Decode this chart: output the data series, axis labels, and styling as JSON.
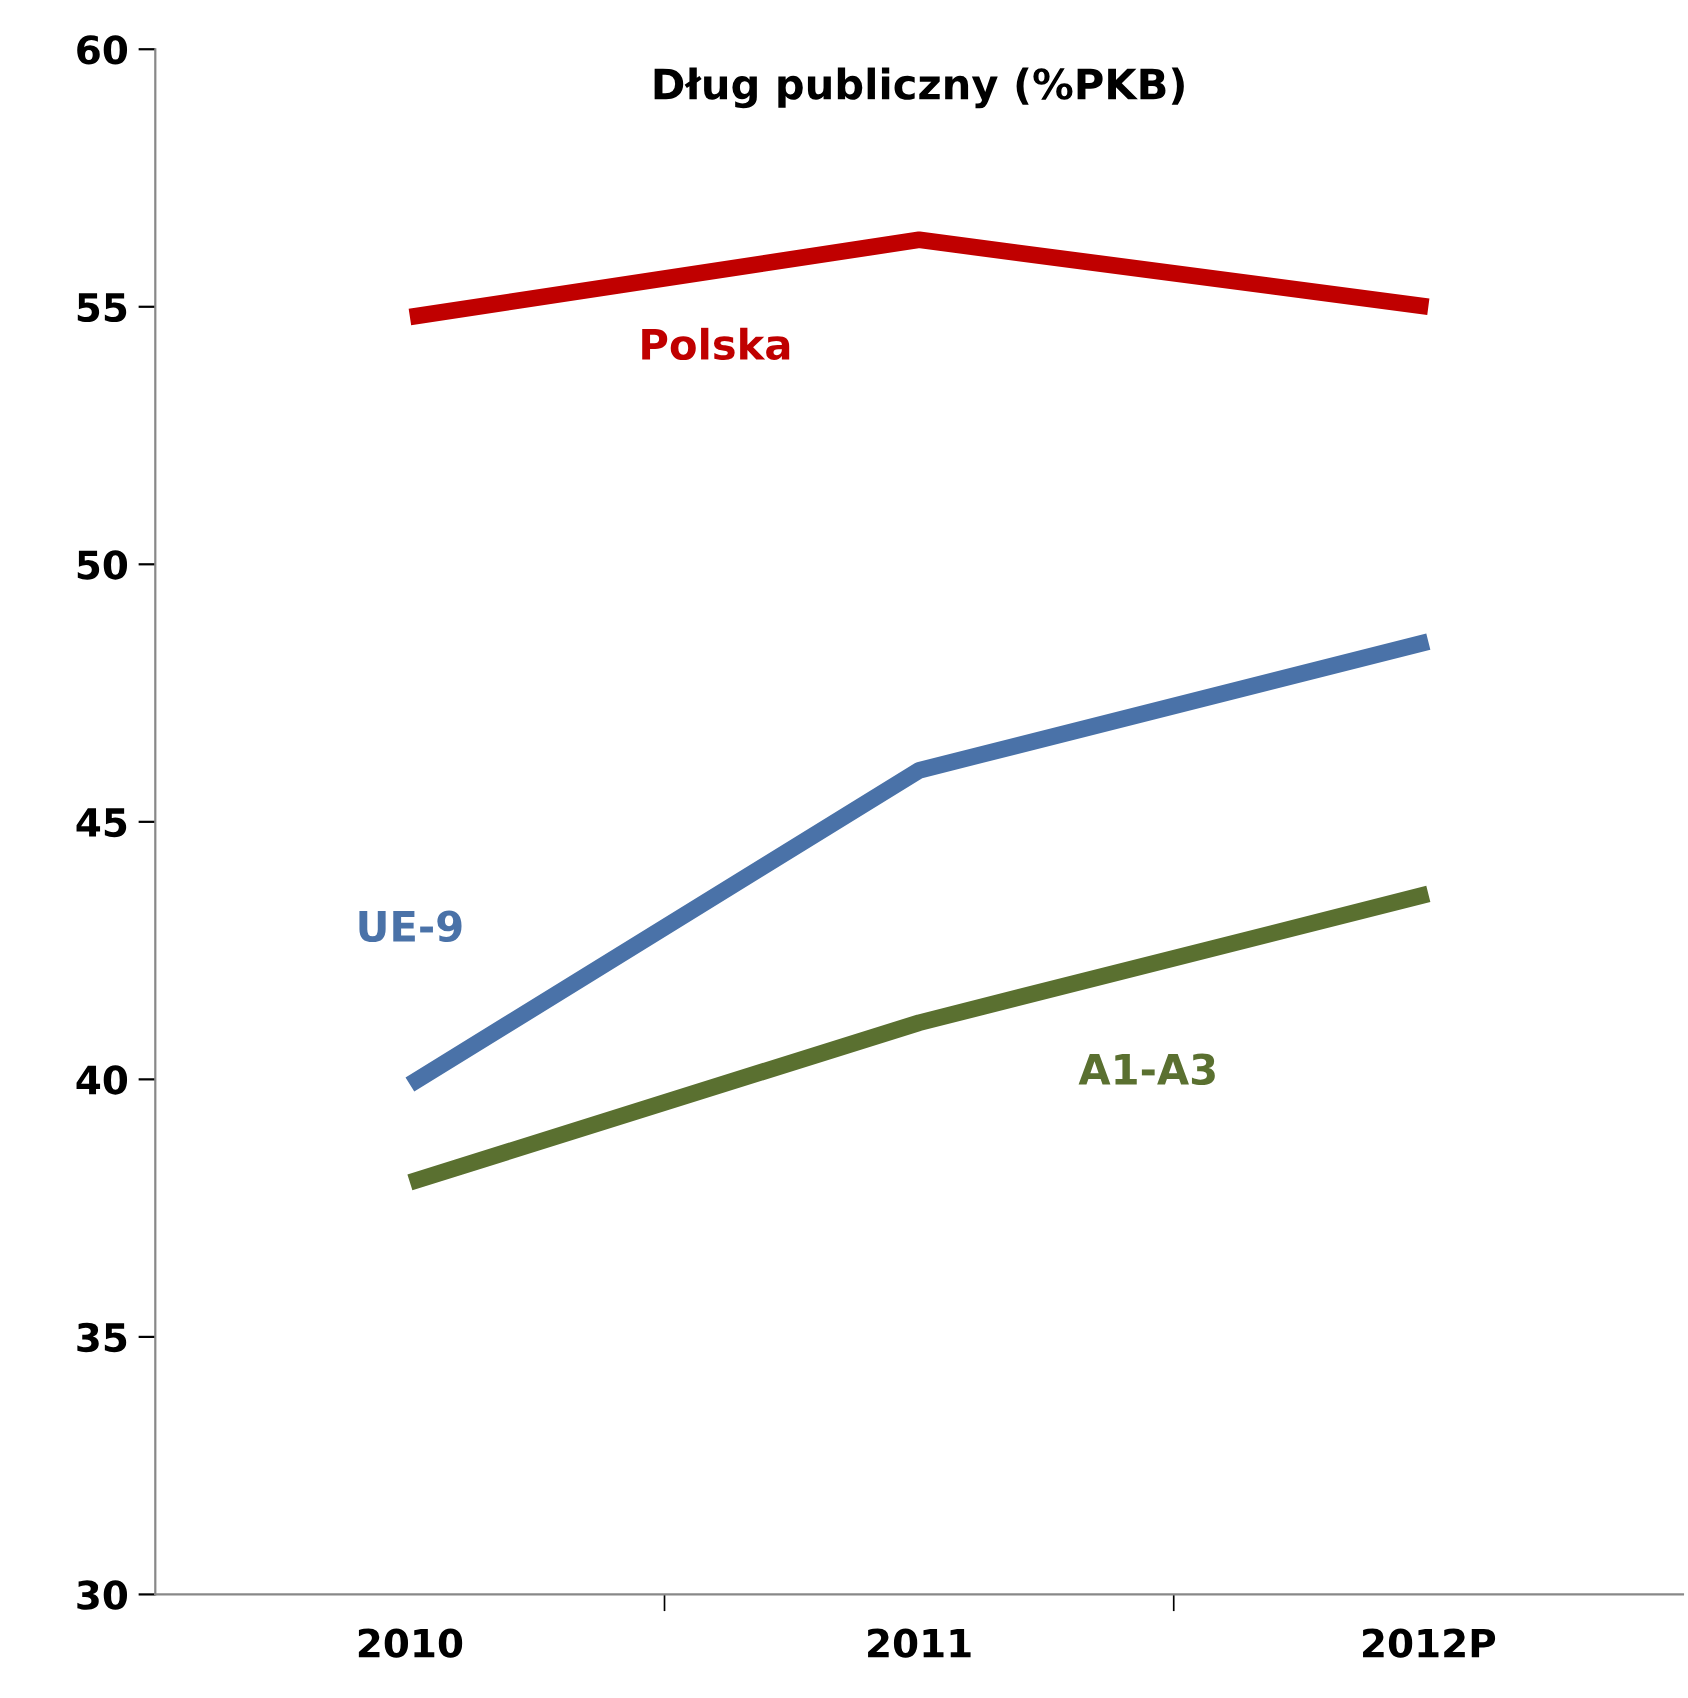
{
  "chart_data": {
    "type": "line",
    "title": "Dług publiczny (%PKB)",
    "categories": [
      "2010",
      "2011",
      "2012P"
    ],
    "series": [
      {
        "name": "Polska",
        "color": "#c00000",
        "values": [
          54.8,
          56.3,
          55.0
        ]
      },
      {
        "name": "UE-9",
        "color": "#4a72a8",
        "values": [
          39.9,
          46.0,
          48.5
        ]
      },
      {
        "name": "A1-A3",
        "color": "#5a7030",
        "values": [
          38.0,
          41.1,
          43.6
        ]
      }
    ],
    "ylim": [
      30,
      60
    ],
    "yticks": [
      30,
      35,
      40,
      45,
      50,
      55,
      60
    ],
    "grid": false,
    "legend": false
  }
}
